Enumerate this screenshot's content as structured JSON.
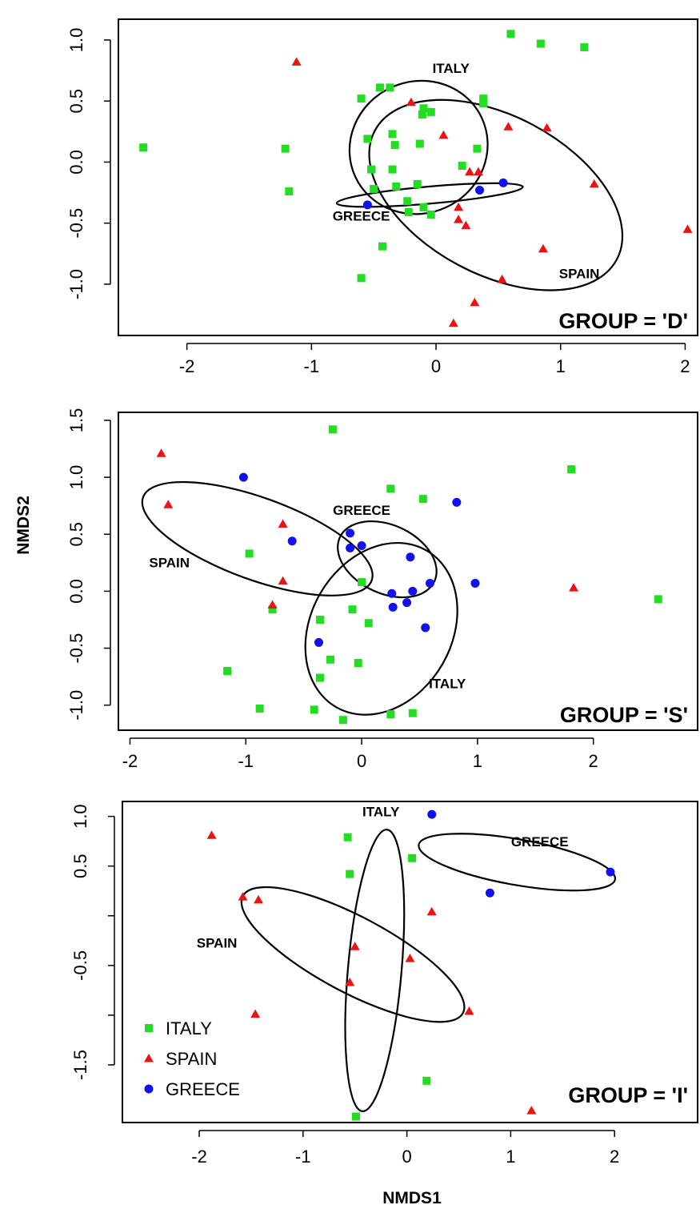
{
  "colors": {
    "ITALY": "#22dd22",
    "SPAIN": "#ee1111",
    "GREECE": "#1111ee",
    "axis": "#000000"
  },
  "shapes": {
    "ITALY": "square",
    "SPAIN": "triangle",
    "GREECE": "circle"
  },
  "xlabel": "NMDS1",
  "ylabel": "NMDS2",
  "legend": {
    "location": "bottom-left of third panel",
    "entries": [
      "ITALY",
      "SPAIN",
      "GREECE"
    ]
  },
  "chart_data": [
    {
      "type": "scatter",
      "group_label": "GROUP = 'D'",
      "xlim": [
        -2.55,
        2.1
      ],
      "ylim": [
        -1.42,
        1.17
      ],
      "xticks": [
        -2,
        -1,
        0,
        1,
        2
      ],
      "yticks": [
        -1.0,
        -0.5,
        0.0,
        0.5,
        1.0
      ],
      "xtick_labels": [
        "-2",
        "-1",
        "0",
        "1",
        "2"
      ],
      "ytick_labels": [
        "-1.0",
        "-0.5",
        "0.0",
        "0.5",
        "1.0"
      ],
      "series": [
        {
          "name": "ITALY",
          "marker": "square",
          "points": [
            [
              0.6,
              1.05
            ],
            [
              0.84,
              0.97
            ],
            [
              1.19,
              0.94
            ],
            [
              -0.45,
              0.61
            ],
            [
              -0.37,
              0.61
            ],
            [
              -0.6,
              0.52
            ],
            [
              0.38,
              0.52
            ],
            [
              0.38,
              0.48
            ],
            [
              -0.1,
              0.44
            ],
            [
              -0.04,
              0.41
            ],
            [
              -0.11,
              0.39
            ],
            [
              -0.35,
              0.23
            ],
            [
              -0.55,
              0.19
            ],
            [
              -0.33,
              0.14
            ],
            [
              -0.13,
              0.15
            ],
            [
              0.33,
              0.11
            ],
            [
              -2.35,
              0.12
            ],
            [
              -1.21,
              0.11
            ],
            [
              0.21,
              -0.03
            ],
            [
              -0.52,
              -0.06
            ],
            [
              -0.35,
              -0.06
            ],
            [
              -0.15,
              -0.18
            ],
            [
              -0.32,
              -0.2
            ],
            [
              -0.5,
              -0.22
            ],
            [
              -1.18,
              -0.24
            ],
            [
              -0.23,
              -0.32
            ],
            [
              -0.1,
              -0.37
            ],
            [
              -0.22,
              -0.41
            ],
            [
              -0.04,
              -0.43
            ],
            [
              -0.43,
              -0.69
            ],
            [
              -0.6,
              -0.95
            ]
          ]
        },
        {
          "name": "SPAIN",
          "marker": "triangle",
          "points": [
            [
              -1.12,
              0.82
            ],
            [
              -0.2,
              0.49
            ],
            [
              0.06,
              0.22
            ],
            [
              0.58,
              0.29
            ],
            [
              0.89,
              0.28
            ],
            [
              0.27,
              -0.08
            ],
            [
              0.34,
              -0.08
            ],
            [
              1.27,
              -0.18
            ],
            [
              0.18,
              -0.37
            ],
            [
              0.18,
              -0.47
            ],
            [
              0.24,
              -0.52
            ],
            [
              2.02,
              -0.55
            ],
            [
              0.86,
              -0.71
            ],
            [
              0.53,
              -0.96
            ],
            [
              0.31,
              -1.15
            ],
            [
              0.14,
              -1.32
            ]
          ]
        },
        {
          "name": "GREECE",
          "marker": "circle",
          "points": [
            [
              -0.55,
              -0.35
            ],
            [
              0.35,
              -0.23
            ],
            [
              0.54,
              -0.17
            ]
          ]
        }
      ],
      "ellipses": [
        {
          "name": "ITALY",
          "cx": -0.14,
          "cy": 0.12,
          "rx": 0.56,
          "ry": 0.54,
          "angle_deg": 25
        },
        {
          "name": "SPAIN",
          "cx": 0.48,
          "cy": -0.27,
          "rx": 1.1,
          "ry": 0.65,
          "angle_deg": -28
        },
        {
          "name": "GREECE",
          "cx": -0.05,
          "cy": -0.27,
          "rx": 0.75,
          "ry": 0.07,
          "angle_deg": 5
        }
      ],
      "ellipse_labels": [
        {
          "text": "ITALY",
          "x": 0.12,
          "y": 0.73
        },
        {
          "text": "SPAIN",
          "x": 1.15,
          "y": -0.95
        },
        {
          "text": "GREECE",
          "x": -0.6,
          "y": -0.48
        }
      ]
    },
    {
      "type": "scatter",
      "group_label": "GROUP = 'S'",
      "xlim": [
        -2.1,
        2.9
      ],
      "ylim": [
        -1.22,
        1.57
      ],
      "xticks": [
        -2,
        -1,
        0,
        1,
        2
      ],
      "yticks": [
        -1.0,
        -0.5,
        0.0,
        0.5,
        1.0,
        1.5
      ],
      "xtick_labels": [
        "-2",
        "-1",
        "0",
        "1",
        "2"
      ],
      "ytick_labels": [
        "-1.0",
        "-0.5",
        "0.0",
        "0.5",
        "1.0",
        "1.5"
      ],
      "series": [
        {
          "name": "ITALY",
          "marker": "square",
          "points": [
            [
              -0.25,
              1.42
            ],
            [
              1.81,
              1.07
            ],
            [
              0.25,
              0.9
            ],
            [
              0.53,
              0.81
            ],
            [
              -0.97,
              0.33
            ],
            [
              0.0,
              0.08
            ],
            [
              -0.77,
              -0.16
            ],
            [
              -0.08,
              -0.16
            ],
            [
              0.06,
              -0.28
            ],
            [
              -0.36,
              -0.25
            ],
            [
              2.56,
              -0.07
            ],
            [
              -1.16,
              -0.7
            ],
            [
              -0.27,
              -0.6
            ],
            [
              -0.03,
              -0.63
            ],
            [
              -0.36,
              -0.76
            ],
            [
              -0.88,
              -1.03
            ],
            [
              -0.41,
              -1.04
            ],
            [
              -0.16,
              -1.13
            ],
            [
              0.25,
              -1.08
            ],
            [
              0.44,
              -1.07
            ]
          ]
        },
        {
          "name": "SPAIN",
          "marker": "triangle",
          "points": [
            [
              -1.73,
              1.21
            ],
            [
              -1.67,
              0.76
            ],
            [
              -0.68,
              0.59
            ],
            [
              -0.68,
              0.09
            ],
            [
              -0.77,
              -0.12
            ],
            [
              1.83,
              0.03
            ]
          ]
        },
        {
          "name": "GREECE",
          "marker": "circle",
          "points": [
            [
              -1.02,
              1.0
            ],
            [
              0.82,
              0.78
            ],
            [
              -0.1,
              0.51
            ],
            [
              -0.6,
              0.44
            ],
            [
              -0.1,
              0.38
            ],
            [
              0.0,
              0.4
            ],
            [
              0.42,
              0.3
            ],
            [
              0.59,
              0.07
            ],
            [
              0.98,
              0.07
            ],
            [
              0.26,
              -0.02
            ],
            [
              0.44,
              0.0
            ],
            [
              0.39,
              -0.1
            ],
            [
              0.27,
              -0.14
            ],
            [
              0.55,
              -0.32
            ],
            [
              -0.37,
              -0.45
            ]
          ]
        }
      ],
      "ellipses": [
        {
          "name": "ITALY",
          "cx": 0.17,
          "cy": -0.33,
          "rx": 0.78,
          "ry": 0.62,
          "angle_deg": 60
        },
        {
          "name": "SPAIN",
          "cx": -0.9,
          "cy": 0.46,
          "rx": 1.05,
          "ry": 0.36,
          "angle_deg": -20
        },
        {
          "name": "GREECE",
          "cx": 0.22,
          "cy": 0.28,
          "rx": 0.45,
          "ry": 0.3,
          "angle_deg": -25
        }
      ],
      "ellipse_labels": [
        {
          "text": "GREECE",
          "x": 0.0,
          "y": 0.67
        },
        {
          "text": "SPAIN",
          "x": -1.66,
          "y": 0.21
        },
        {
          "text": "ITALY",
          "x": 0.74,
          "y": -0.85
        }
      ]
    },
    {
      "type": "scatter",
      "group_label": "GROUP = 'I'",
      "xlim": [
        -2.74,
        2.8
      ],
      "ylim": [
        -2.08,
        1.15
      ],
      "xticks": [
        -2,
        -1,
        0,
        1,
        2
      ],
      "yticks": [
        -1.5,
        -1.0,
        -0.5,
        0.0,
        0.5,
        1.0
      ],
      "xtick_labels": [
        "-2",
        "-1",
        "0",
        "1",
        "2"
      ],
      "ytick_labels": [
        "-1.5",
        "",
        "-0.5",
        "",
        "0.5",
        "1.0"
      ],
      "series": [
        {
          "name": "ITALY",
          "marker": "square",
          "points": [
            [
              -0.57,
              0.79
            ],
            [
              0.05,
              0.58
            ],
            [
              -0.55,
              0.42
            ],
            [
              0.19,
              -1.66
            ],
            [
              -0.49,
              -2.02
            ]
          ]
        },
        {
          "name": "SPAIN",
          "marker": "triangle",
          "points": [
            [
              -1.88,
              0.81
            ],
            [
              -1.58,
              0.19
            ],
            [
              -1.43,
              0.16
            ],
            [
              0.24,
              0.04
            ],
            [
              -0.5,
              -0.31
            ],
            [
              0.03,
              -0.43
            ],
            [
              -0.55,
              -0.67
            ],
            [
              -1.46,
              -0.99
            ],
            [
              0.6,
              -0.96
            ],
            [
              1.2,
              -1.96
            ]
          ]
        },
        {
          "name": "GREECE",
          "marker": "circle",
          "points": [
            [
              0.24,
              1.02
            ],
            [
              1.96,
              0.44
            ],
            [
              0.8,
              0.23
            ]
          ]
        }
      ],
      "ellipses": [
        {
          "name": "ITALY",
          "cx": -0.31,
          "cy": -0.55,
          "rx": 1.36,
          "ry": 0.27,
          "angle_deg": 85
        },
        {
          "name": "SPAIN",
          "cx": -0.52,
          "cy": -0.39,
          "rx": 1.2,
          "ry": 0.38,
          "angle_deg": -28
        },
        {
          "name": "GREECE",
          "cx": 1.06,
          "cy": 0.54,
          "rx": 0.96,
          "ry": 0.23,
          "angle_deg": -10
        }
      ],
      "ellipse_labels": [
        {
          "text": "ITALY",
          "x": -0.25,
          "y": 1.0
        },
        {
          "text": "GREECE",
          "x": 1.28,
          "y": 0.7
        },
        {
          "text": "SPAIN",
          "x": -1.83,
          "y": -0.32
        }
      ]
    }
  ]
}
